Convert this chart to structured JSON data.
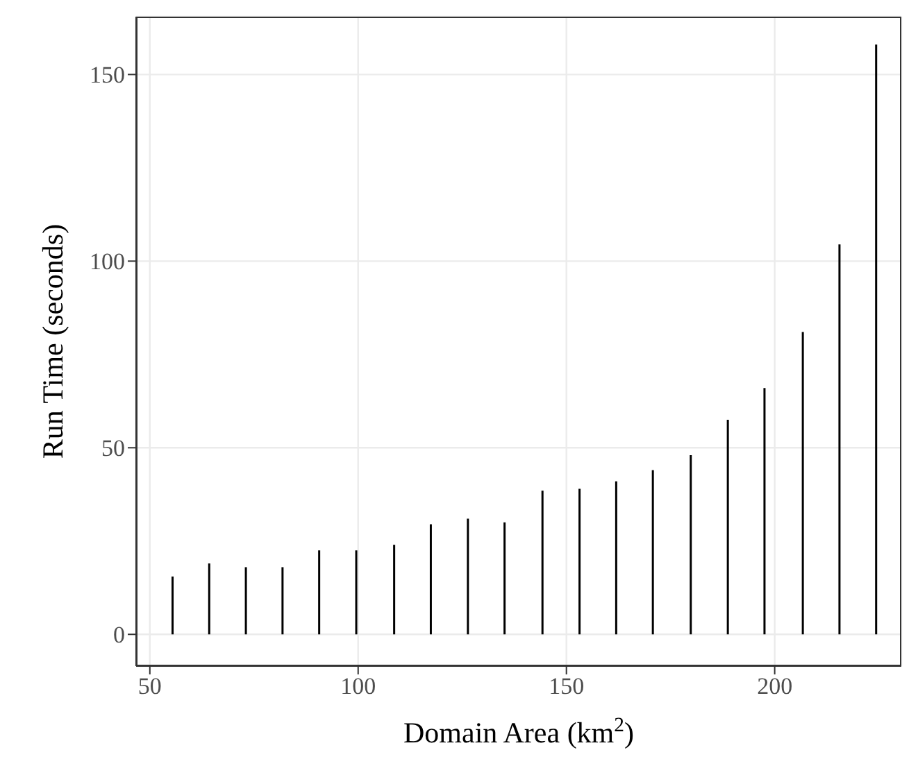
{
  "chart_data": {
    "type": "bar",
    "xlabel": "Domain Area (km$^{2}$)",
    "ylabel": "Run Time (seconds)",
    "x": [
      55.6,
      64.4,
      73.2,
      82.0,
      90.8,
      99.7,
      108.8,
      117.6,
      126.5,
      135.3,
      144.4,
      153.3,
      162.1,
      170.9,
      180.0,
      188.9,
      197.7,
      206.9,
      215.7,
      224.5
    ],
    "values": [
      15.5,
      19,
      18,
      18,
      22.5,
      22.5,
      24,
      29.5,
      31,
      30,
      38.5,
      39,
      41,
      44,
      48,
      57.5,
      66,
      81,
      104.5,
      158
    ],
    "color": "#000000",
    "xlim": [
      46.7,
      230.4
    ],
    "xticks": [
      50,
      100,
      150,
      200
    ],
    "ylim": [
      -8.5,
      165.5
    ],
    "yticks": [
      0,
      50,
      100,
      150
    ],
    "grid": true
  }
}
